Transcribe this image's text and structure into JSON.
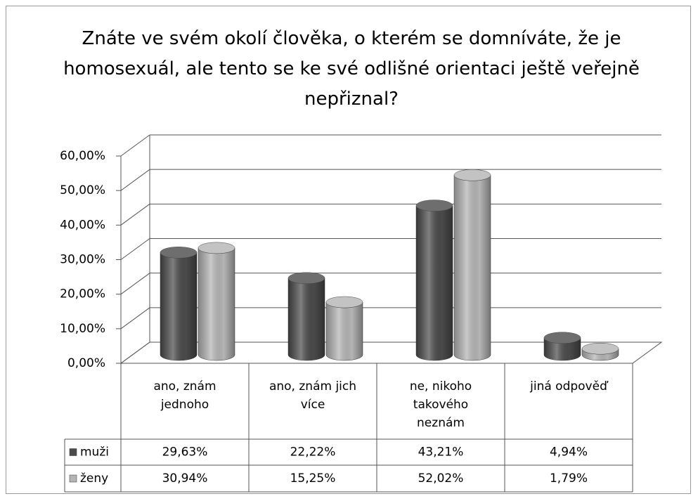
{
  "chart_data": {
    "type": "bar3d",
    "title": "Znáte ve svém okolí člověka, o kterém se domníváte, že je homosexuál, ale tento se ke své odlišné orientaci ještě veřejně nepřiznal?",
    "categories": [
      "ano, znám jednoho",
      "ano, znám jich více",
      "ne, nikoho takového neznám",
      "jiná odpověď"
    ],
    "series": [
      {
        "name": "muži",
        "color": "#4a4a4a",
        "values": [
          29.63,
          22.22,
          43.21,
          4.94
        ],
        "value_labels": [
          "29,63%",
          "22,22%",
          "43,21%",
          "4,94%"
        ]
      },
      {
        "name": "ženy",
        "color": "#b4b4b4",
        "values": [
          30.94,
          15.25,
          52.02,
          1.79
        ],
        "value_labels": [
          "30,94%",
          "15,25%",
          "52,02%",
          "1,79%"
        ]
      }
    ],
    "ylim": [
      0,
      60
    ],
    "yticks": [
      {
        "value": 0,
        "label": "0,00%"
      },
      {
        "value": 10,
        "label": "10,00%"
      },
      {
        "value": 20,
        "label": "20,00%"
      },
      {
        "value": 30,
        "label": "30,00%"
      },
      {
        "value": 40,
        "label": "40,00%"
      },
      {
        "value": 50,
        "label": "50,00%"
      },
      {
        "value": 60,
        "label": "60,00%"
      }
    ],
    "grid": true
  }
}
